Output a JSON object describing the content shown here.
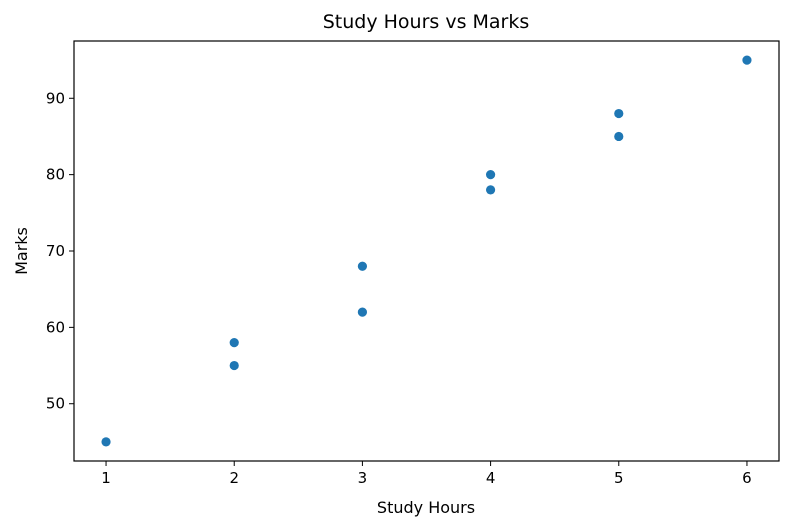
{
  "chart_data": {
    "type": "scatter",
    "title": "Study Hours vs Marks",
    "xlabel": "Study Hours",
    "ylabel": "Marks",
    "x": [
      1,
      2,
      2,
      3,
      3,
      4,
      4,
      5,
      5,
      6
    ],
    "y": [
      45,
      55,
      58,
      62,
      68,
      78,
      80,
      85,
      88,
      95
    ],
    "xlim": [
      0.75,
      6.25
    ],
    "ylim": [
      42.5,
      97.5
    ],
    "xticks": [
      1,
      2,
      3,
      4,
      5,
      6
    ],
    "yticks": [
      50,
      60,
      70,
      80,
      90
    ],
    "grid": false,
    "marker_color": "#1f77b4"
  }
}
